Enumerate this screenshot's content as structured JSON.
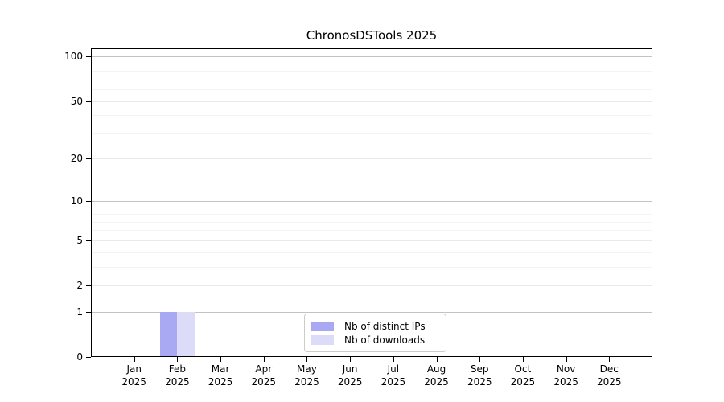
{
  "chart_data": {
    "type": "bar",
    "title": "ChronosDSTools 2025",
    "categories": [
      "Jan",
      "Feb",
      "Mar",
      "Apr",
      "May",
      "Jun",
      "Jul",
      "Aug",
      "Sep",
      "Oct",
      "Nov",
      "Dec"
    ],
    "x_tick_year": "2025",
    "series": [
      {
        "name": "Nb of distinct IPs",
        "color": "#a9a9f3",
        "values": [
          0,
          1,
          0,
          0,
          0,
          0,
          0,
          0,
          0,
          0,
          0,
          0
        ]
      },
      {
        "name": "Nb of downloads",
        "color": "#dcdcf8",
        "values": [
          0,
          1,
          0,
          0,
          0,
          0,
          0,
          0,
          0,
          0,
          0,
          0
        ]
      }
    ],
    "y_scale": "log1p",
    "y_ticks": [
      0,
      1,
      2,
      5,
      10,
      20,
      50,
      100
    ],
    "y_minor_gridlines": [
      3,
      4,
      6,
      7,
      8,
      9,
      30,
      40,
      60,
      70,
      80,
      90
    ],
    "ylim": [
      0,
      113
    ],
    "xlabel": "",
    "ylabel": "",
    "grid": "horizontal",
    "legend": {
      "position": "lower center"
    },
    "colors": {
      "background": "#ffffff",
      "spine": "#000000",
      "grid_power10": "#c3c3c3",
      "grid_major": "#e9e9e9",
      "grid_minor": "#f4f4f4",
      "legend_border": "#cccccc"
    }
  }
}
